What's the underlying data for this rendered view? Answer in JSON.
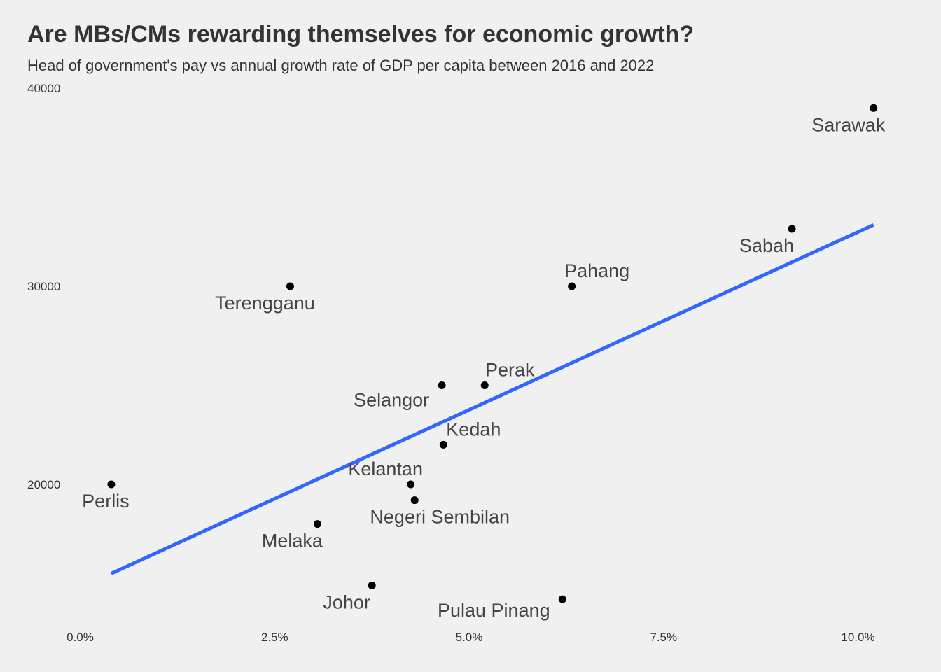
{
  "chart_data": {
    "type": "scatter",
    "title": "Are MBs/CMs rewarding themselves for economic growth?",
    "subtitle": "Head of government's pay vs annual growth rate of GDP per capita between 2016 and 2022",
    "xlabel": "",
    "ylabel": "",
    "xlim": [
      0,
      10.2
    ],
    "ylim": [
      13000,
      40000
    ],
    "x_ticks": [
      0,
      2.5,
      5.0,
      7.5,
      10.0
    ],
    "x_tick_labels": [
      "0.0%",
      "2.5%",
      "5.0%",
      "7.5%",
      "10.0%"
    ],
    "y_ticks": [
      20000,
      30000,
      40000
    ],
    "y_tick_labels": [
      "20000",
      "30000",
      "40000"
    ],
    "grid": false,
    "point_color": "#000000",
    "trend_line": {
      "color": "#3366ff",
      "x": [
        0.4,
        10.2
      ],
      "y": [
        15500,
        33100
      ]
    },
    "points": [
      {
        "label": "Perlis",
        "x": 0.4,
        "y": 20000
      },
      {
        "label": "Terengganu",
        "x": 2.7,
        "y": 30000
      },
      {
        "label": "Melaka",
        "x": 3.05,
        "y": 18000
      },
      {
        "label": "Johor",
        "x": 3.75,
        "y": 14900
      },
      {
        "label": "Kelantan",
        "x": 4.25,
        "y": 20000
      },
      {
        "label": "Negeri Sembilan",
        "x": 4.3,
        "y": 19200
      },
      {
        "label": "Selangor",
        "x": 4.65,
        "y": 25000
      },
      {
        "label": "Kedah",
        "x": 4.67,
        "y": 22000
      },
      {
        "label": "Perak",
        "x": 5.2,
        "y": 25000
      },
      {
        "label": "Pulau Pinang",
        "x": 6.2,
        "y": 14200
      },
      {
        "label": "Pahang",
        "x": 6.32,
        "y": 30000
      },
      {
        "label": "Sabah",
        "x": 9.15,
        "y": 32900
      },
      {
        "label": "Sarawak",
        "x": 10.2,
        "y": 39000
      }
    ]
  }
}
